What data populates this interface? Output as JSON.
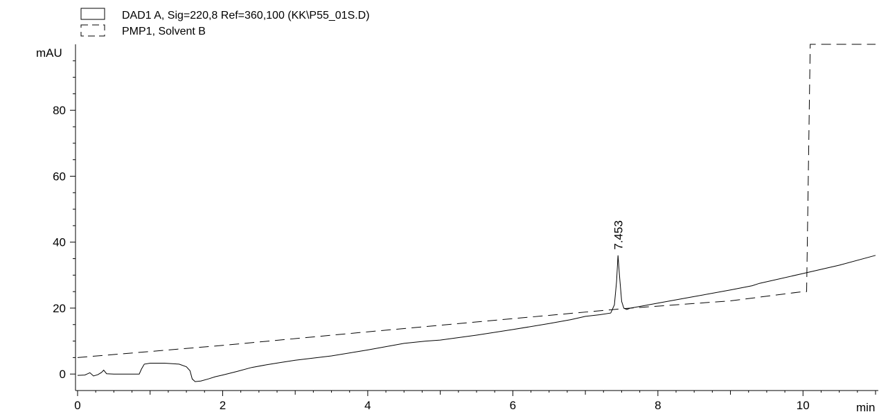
{
  "chart_data": {
    "type": "line",
    "legend": {
      "placement": "top-left",
      "entries": [
        {
          "label": "DAD1 A, Sig=220,8 Ref=360,100 (KK\\P55_01S.D)",
          "style": "solid"
        },
        {
          "label": "PMP1, Solvent B",
          "style": "dashed"
        }
      ]
    },
    "ylabel": "mAU",
    "xlabel": "min",
    "xlim": [
      0,
      11
    ],
    "ylim": [
      -5,
      100
    ],
    "x_ticks": [
      0,
      2,
      4,
      6,
      8,
      10
    ],
    "x_tick_labels": [
      "0",
      "2",
      "4",
      "6",
      "8",
      "10"
    ],
    "y_ticks": [
      0,
      20,
      40,
      60,
      80
    ],
    "y_tick_labels": [
      "0",
      "20",
      "40",
      "60",
      "80"
    ],
    "grid": false,
    "series": [
      {
        "name": "DAD1 A, Sig=220,8 Ref=360,100 (KK\\P55_01S.D)",
        "style": "solid",
        "color": "#000000",
        "x": [
          0,
          0.1,
          0.17,
          0.22,
          0.28,
          0.33,
          0.36,
          0.4,
          0.5,
          0.6,
          0.7,
          0.85,
          0.88,
          0.92,
          1.0,
          1.2,
          1.4,
          1.5,
          1.55,
          1.58,
          1.62,
          1.7,
          1.8,
          1.9,
          2.0,
          2.2,
          2.4,
          2.6,
          2.8,
          3.0,
          3.5,
          4.0,
          4.5,
          4.8,
          5.0,
          5.5,
          6.0,
          6.5,
          6.8,
          7.0,
          7.2,
          7.35,
          7.4,
          7.43,
          7.45,
          7.47,
          7.5,
          7.53,
          7.57,
          7.62,
          7.7,
          8.0,
          8.5,
          9.0,
          9.3,
          9.4,
          10.0,
          10.5,
          11.0
        ],
        "y": [
          -0.4,
          -0.3,
          0.4,
          -0.6,
          -0.2,
          0.5,
          1.2,
          0.1,
          0.0,
          0.0,
          0.0,
          0.0,
          1.5,
          3.0,
          3.3,
          3.3,
          3.0,
          2.2,
          1.0,
          -1.5,
          -2.3,
          -2.1,
          -1.5,
          -0.8,
          -0.3,
          0.8,
          2.0,
          2.8,
          3.5,
          4.2,
          5.5,
          7.3,
          9.3,
          10.0,
          10.3,
          11.8,
          13.5,
          15.3,
          16.5,
          17.5,
          18.0,
          18.5,
          21.0,
          28.0,
          36.0,
          30.0,
          22.0,
          20.0,
          19.6,
          20.0,
          20.3,
          21.5,
          23.5,
          25.5,
          26.8,
          27.5,
          30.5,
          33.0,
          36.0
        ]
      },
      {
        "name": "PMP1, Solvent B",
        "style": "dashed",
        "color": "#000000",
        "x": [
          0,
          2.0,
          4.0,
          6.0,
          7.5,
          8.0,
          9.0,
          10.0,
          10.05,
          10.1,
          11.0
        ],
        "y": [
          5.0,
          8.7,
          12.8,
          16.8,
          19.8,
          20.6,
          22.2,
          25.0,
          25.0,
          100.0,
          100.0
        ]
      }
    ],
    "annotations": [
      {
        "text": "7.453",
        "x": 7.453,
        "y": 36.0
      }
    ]
  }
}
